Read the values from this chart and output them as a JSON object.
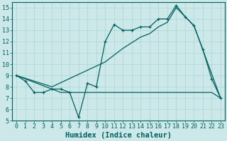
{
  "title": "",
  "xlabel": "Humidex (Indice chaleur)",
  "ylabel": "",
  "xlim": [
    -0.5,
    23.5
  ],
  "ylim": [
    5,
    15.5
  ],
  "background_color": "#cce8e8",
  "grid_color": "#aad4d4",
  "line_color": "#006060",
  "series1_x": [
    0,
    1,
    2,
    3,
    4,
    5,
    6,
    7,
    8,
    9,
    10,
    11,
    12,
    13,
    14,
    15,
    16,
    17,
    18,
    19,
    20,
    21,
    22,
    23
  ],
  "series1_y": [
    9.0,
    8.5,
    7.5,
    7.5,
    7.8,
    7.8,
    7.5,
    5.3,
    8.3,
    8.0,
    12.0,
    13.5,
    13.0,
    13.0,
    13.3,
    13.3,
    14.0,
    14.0,
    15.2,
    14.2,
    13.4,
    11.3,
    8.7,
    7.0
  ],
  "series2_x": [
    0,
    4,
    10,
    11,
    12,
    13,
    14,
    15,
    16,
    17,
    18,
    19,
    20,
    23
  ],
  "series2_y": [
    9.0,
    8.0,
    10.2,
    10.8,
    11.4,
    11.9,
    12.4,
    12.7,
    13.3,
    13.7,
    15.0,
    14.2,
    13.4,
    7.0
  ],
  "series3_x": [
    0,
    4,
    5,
    6,
    7,
    8,
    9,
    10,
    11,
    12,
    13,
    14,
    15,
    16,
    17,
    18,
    19,
    20,
    21,
    22,
    23
  ],
  "series3_y": [
    9.0,
    7.8,
    7.5,
    7.5,
    7.5,
    7.5,
    7.5,
    7.5,
    7.5,
    7.5,
    7.5,
    7.5,
    7.5,
    7.5,
    7.5,
    7.5,
    7.5,
    7.5,
    7.5,
    7.5,
    7.0
  ],
  "xtick_labels": [
    "0",
    "1",
    "2",
    "3",
    "4",
    "5",
    "6",
    "7",
    "8",
    "9",
    "10",
    "11",
    "12",
    "13",
    "14",
    "15",
    "16",
    "17",
    "18",
    "19",
    "20",
    "21",
    "22",
    "23"
  ],
  "yticks": [
    5,
    6,
    7,
    8,
    9,
    10,
    11,
    12,
    13,
    14,
    15
  ],
  "ytick_labels": [
    "5",
    "6",
    "7",
    "8",
    "9",
    "10",
    "11",
    "12",
    "13",
    "14",
    "15"
  ],
  "font_size": 6,
  "label_font_size": 7.5
}
